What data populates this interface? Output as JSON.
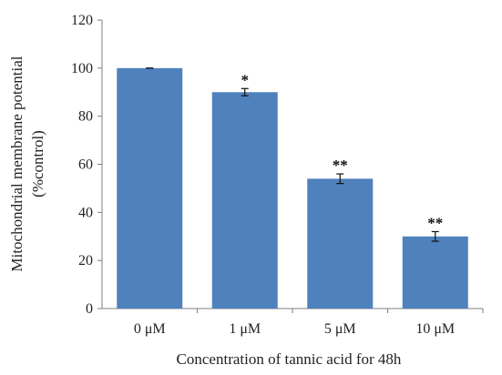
{
  "chart_data": {
    "type": "bar",
    "title": "",
    "xlabel": "Concentration of tannic acid for 48h",
    "ylabel": [
      "Mitochondrial membrane potential",
      "(%control)"
    ],
    "categories": [
      "0 μM",
      "1 μM",
      "5 μM",
      "10 μM"
    ],
    "values": [
      100,
      90,
      54,
      30
    ],
    "errors": [
      0,
      1.5,
      2,
      2
    ],
    "significance": [
      "",
      "*",
      "**",
      "**"
    ],
    "ylim": [
      0,
      120
    ],
    "yticks": [
      "0",
      "20",
      "40",
      "60",
      "80",
      "100",
      "120"
    ],
    "grid": false,
    "legend": "none",
    "bar_color": "#4f81bd",
    "axis_color": "#7f7f7f",
    "error_bar_color": "#111111"
  }
}
